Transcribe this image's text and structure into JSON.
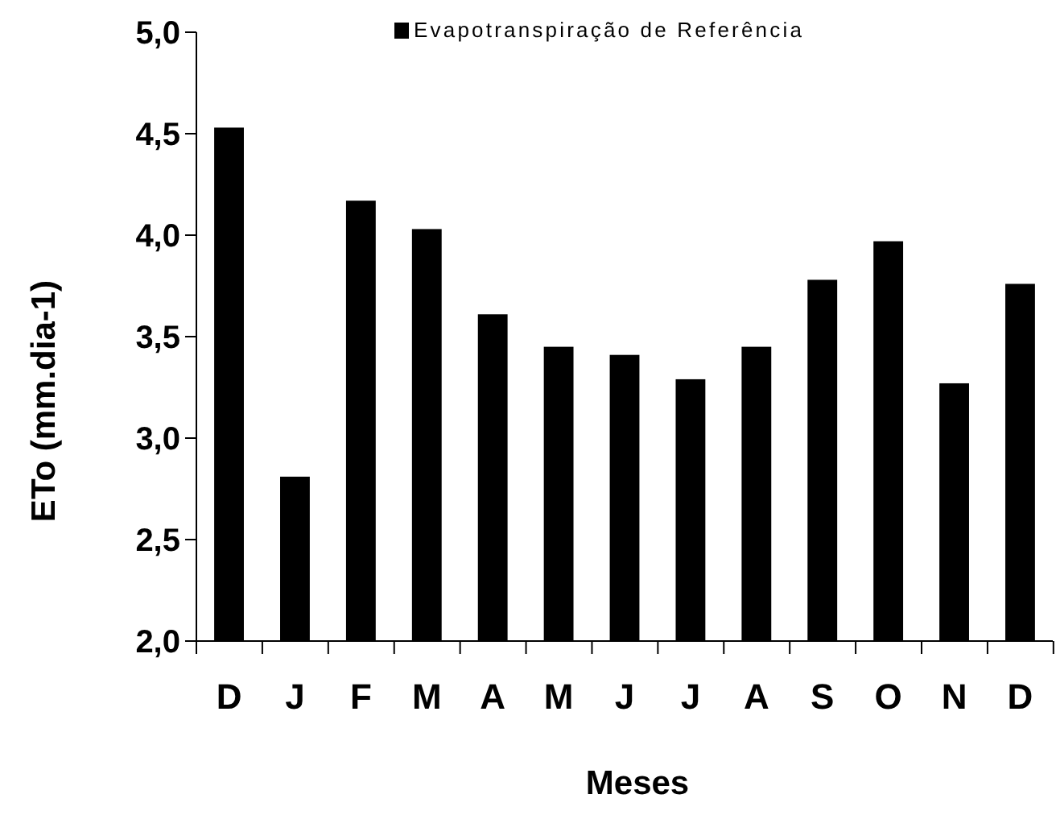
{
  "chart_data": {
    "type": "bar",
    "xlabel": "Meses",
    "ylabel": "ETo (mm.dia-1)",
    "categories": [
      "D",
      "J",
      "F",
      "M",
      "A",
      "M",
      "J",
      "J",
      "A",
      "S",
      "O",
      "N",
      "D"
    ],
    "series": [
      {
        "name": "Evapotranspiração de Referência",
        "color": "#000000",
        "values": [
          4.53,
          2.81,
          4.17,
          4.03,
          3.61,
          3.45,
          3.41,
          3.29,
          3.45,
          3.78,
          3.97,
          3.27,
          3.76
        ]
      }
    ],
    "ylim": [
      2,
      5
    ],
    "yticks": [
      {
        "value": 2,
        "label": "2,0"
      },
      {
        "value": 2.5,
        "label": "2,5"
      },
      {
        "value": 3,
        "label": "3,0"
      },
      {
        "value": 3.5,
        "label": "3,5"
      },
      {
        "value": 4,
        "label": "4,0"
      },
      {
        "value": 4.5,
        "label": "4,5"
      },
      {
        "value": 5,
        "label": "5,0"
      }
    ],
    "grid": false,
    "legend": "top right"
  }
}
